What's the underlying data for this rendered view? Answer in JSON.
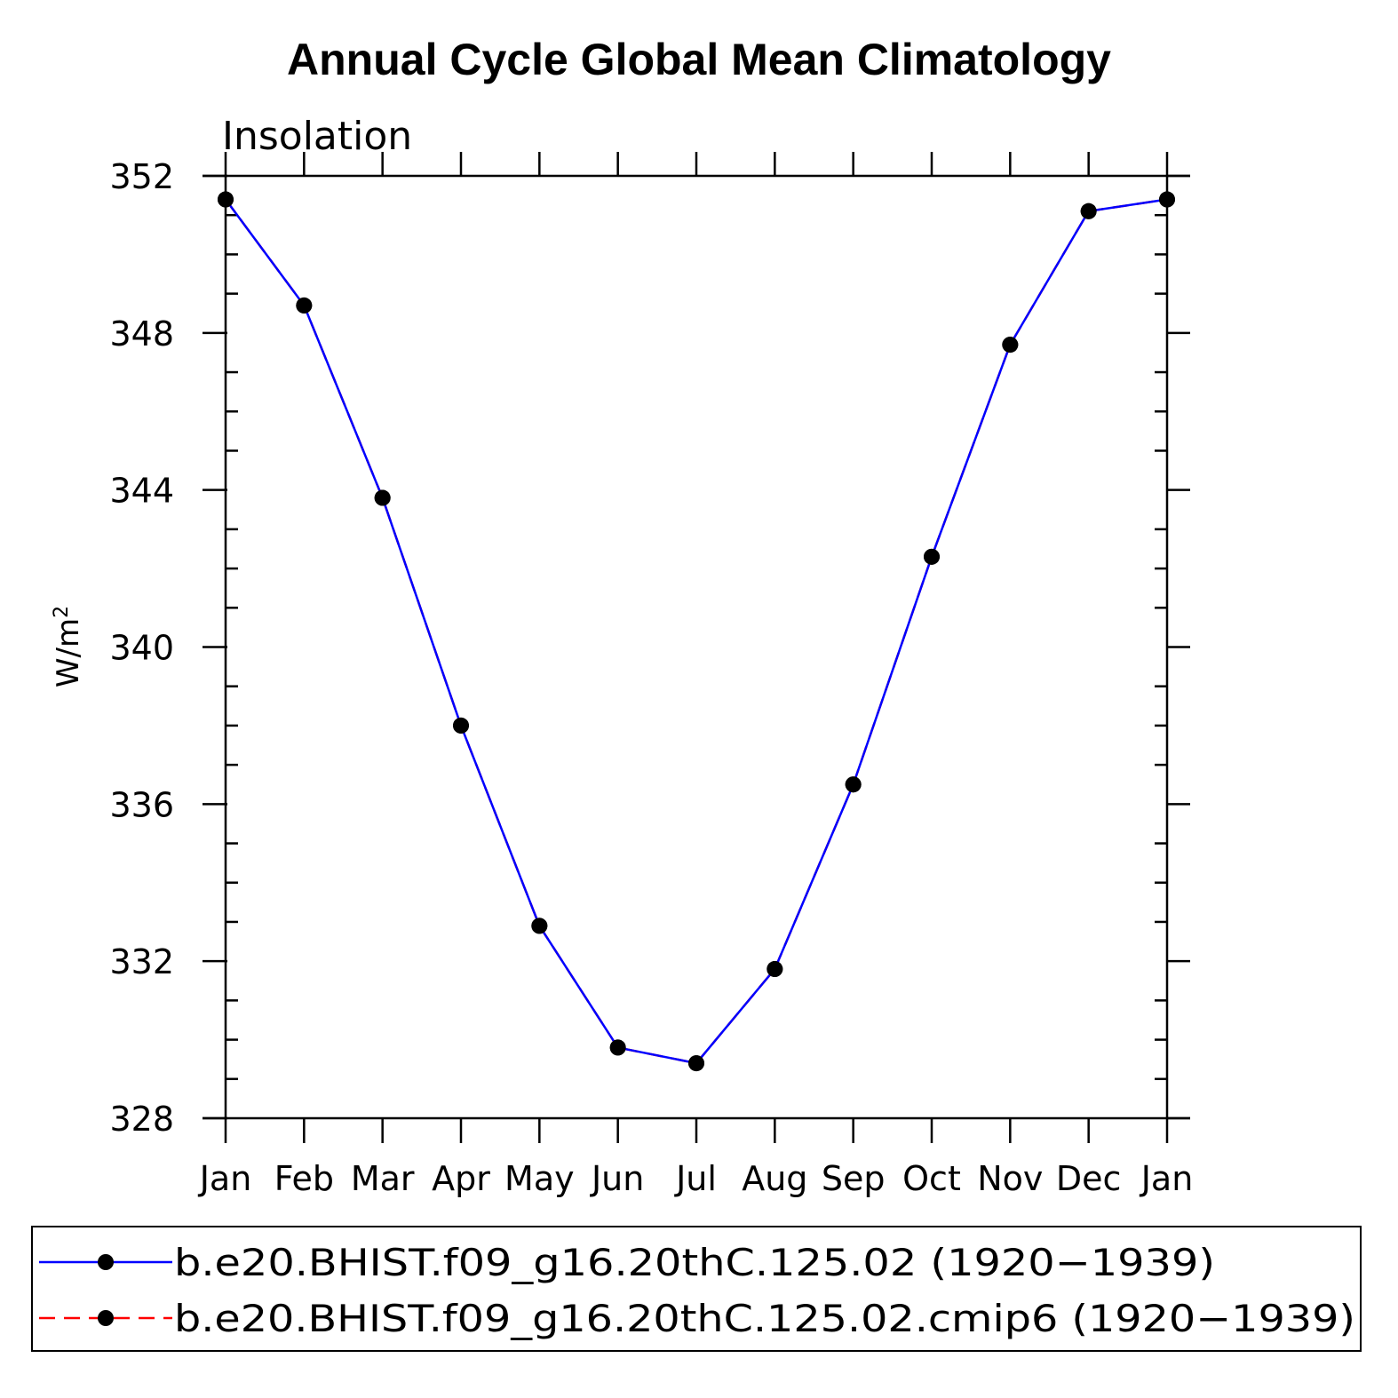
{
  "chart_data": {
    "type": "line",
    "title": "Annual Cycle Global Mean Climatology",
    "subtitle": "Insolation",
    "ylabel": "W/m",
    "ylabel_sup": "2",
    "xlabel": "",
    "categories": [
      "Jan",
      "Feb",
      "Mar",
      "Apr",
      "May",
      "Jun",
      "Jul",
      "Aug",
      "Sep",
      "Oct",
      "Nov",
      "Dec",
      "Jan"
    ],
    "ylim": [
      328,
      352
    ],
    "yticks": [
      328,
      332,
      336,
      340,
      344,
      348,
      352
    ],
    "series": [
      {
        "name": "b.e20.BHIST.f09_g16.20thC.125.02 (1920−1939)",
        "color": "#0000ff",
        "line_style": "solid",
        "marker": "filled-circle",
        "values": [
          351.4,
          348.7,
          343.8,
          338.0,
          332.9,
          329.8,
          329.4,
          331.8,
          336.5,
          342.3,
          347.7,
          351.1,
          351.4
        ]
      },
      {
        "name": "b.e20.BHIST.f09_g16.20thC.125.02.cmip6 (1920−1939)",
        "color": "#ff0000",
        "line_style": "dashed",
        "marker": "filled-circle",
        "values": [
          351.4,
          348.7,
          343.8,
          338.0,
          332.9,
          329.8,
          329.4,
          331.8,
          336.5,
          342.3,
          347.7,
          351.1,
          351.4
        ]
      }
    ],
    "grid": false,
    "legend_position": "bottom"
  }
}
